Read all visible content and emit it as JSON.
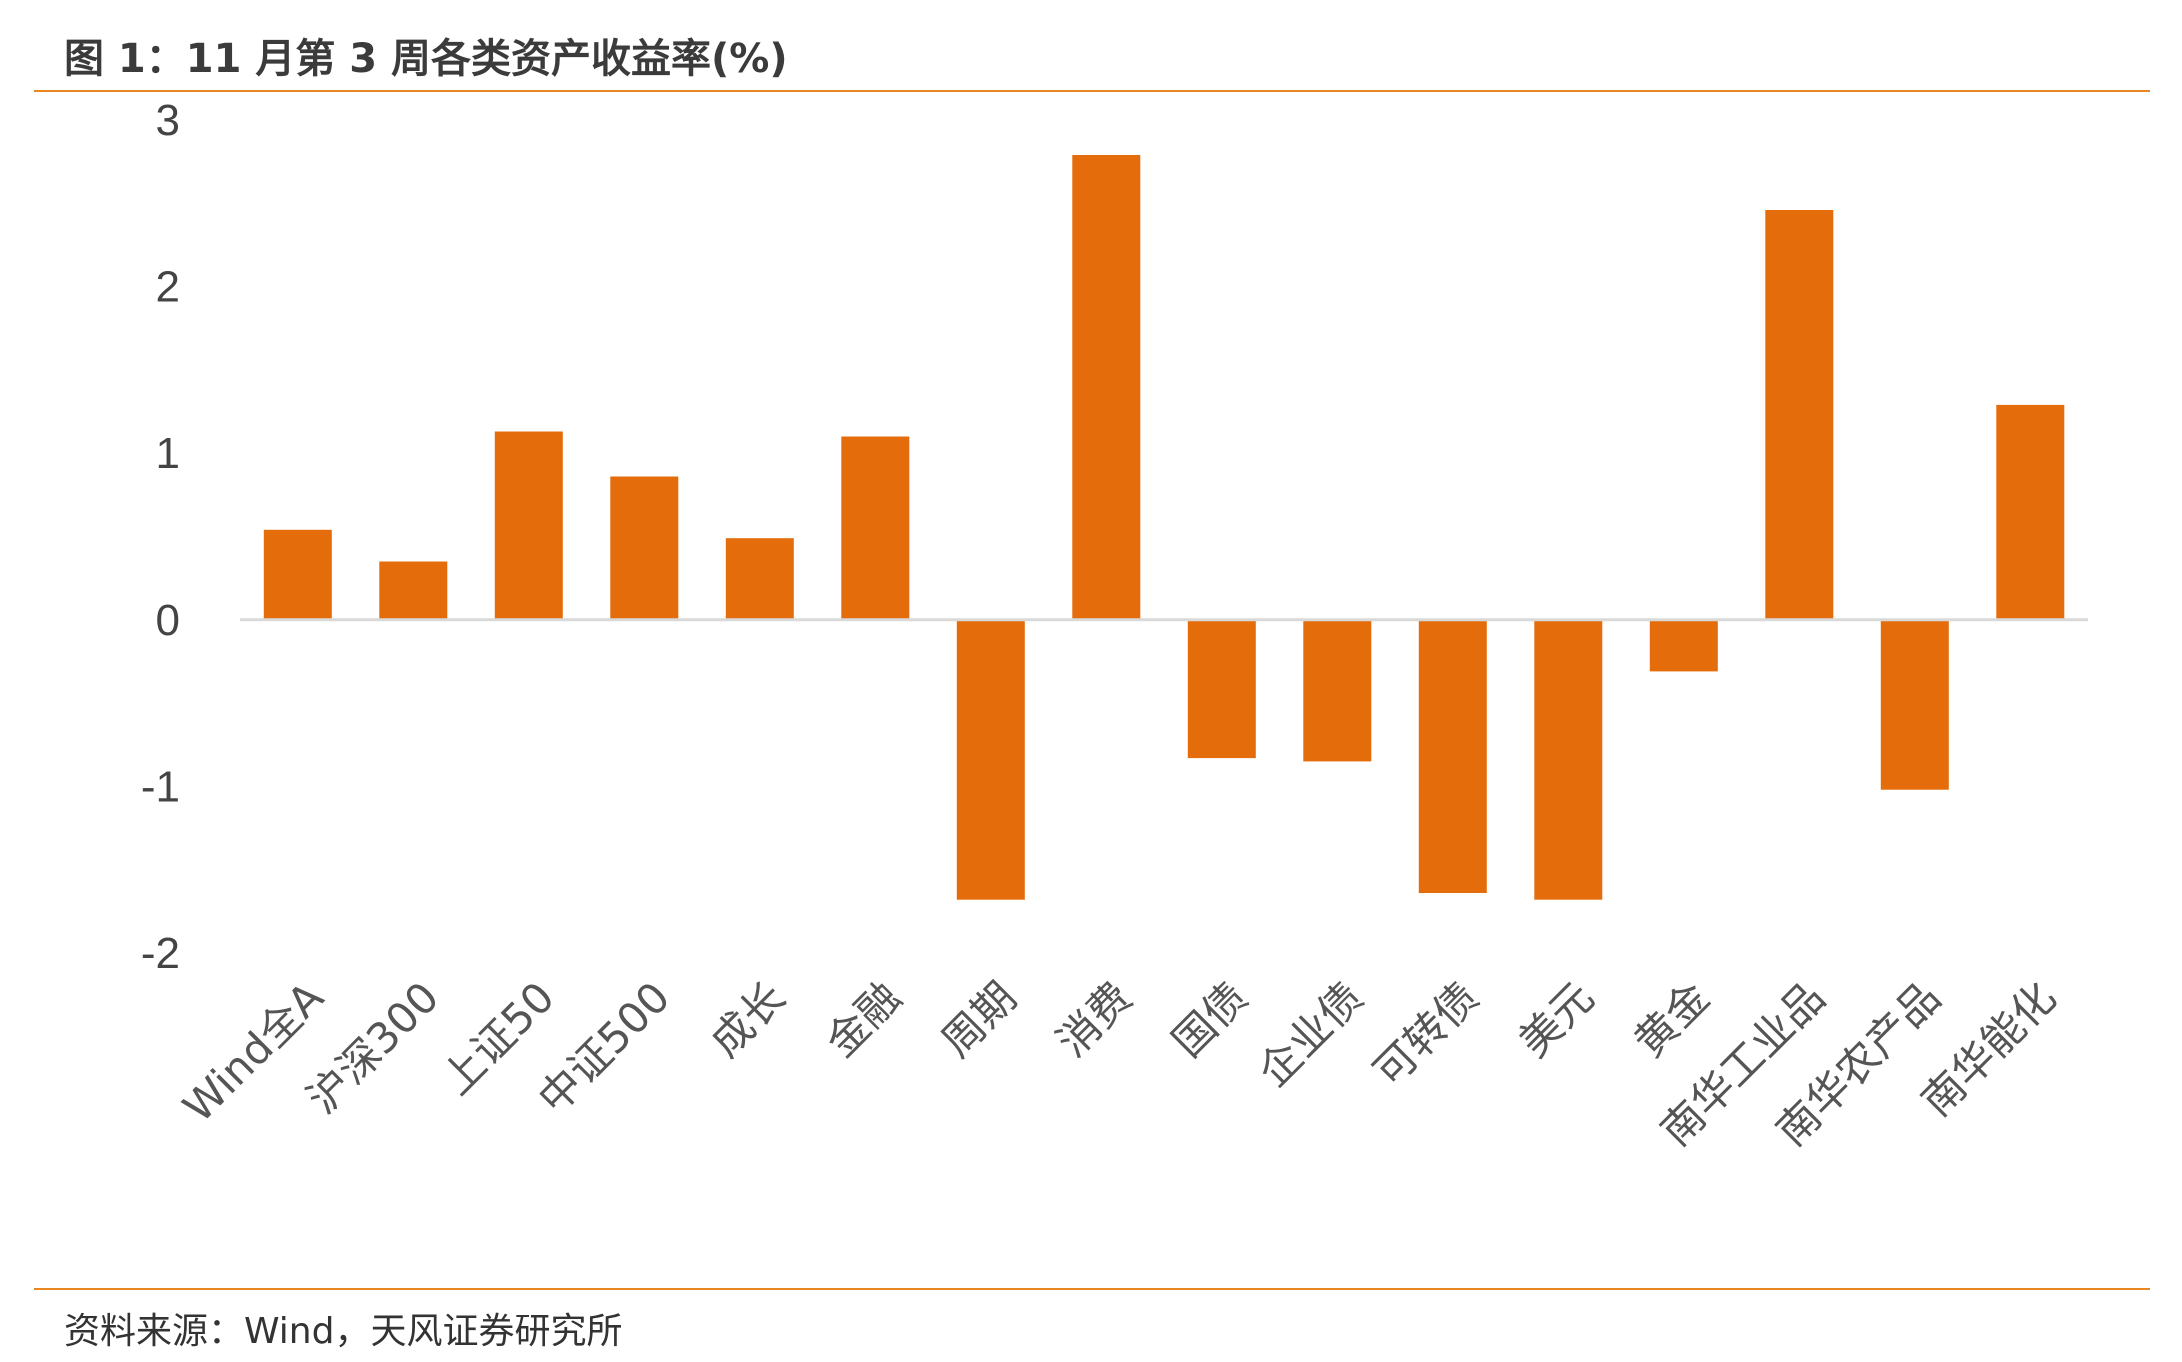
{
  "title": "图 1：11 月第 3 周各类资产收益率(%)",
  "source": "资料来源：Wind，天风证券研究所",
  "colors": {
    "bar": "#E46C0A",
    "rule": "#E8861F",
    "axis": "#D9D9D9"
  },
  "chart_data": {
    "type": "bar",
    "title": "",
    "xlabel": "",
    "ylabel": "",
    "ylim": [
      -2,
      3
    ],
    "yticks": [
      3,
      2,
      1,
      0,
      -1,
      -2
    ],
    "yticks_labels": [
      "3",
      "2",
      "1",
      "0",
      "-1",
      "-2"
    ],
    "grid": false,
    "legend": "none",
    "categories": [
      "Wind全A",
      "沪深300",
      "上证50",
      "中证500",
      "成长",
      "金融",
      "周期",
      "消费",
      "国债",
      "企业债",
      "可转债",
      "美元",
      "黄金",
      "南华工业品",
      "南华农产品",
      "南华能化"
    ],
    "values": [
      0.54,
      0.35,
      1.13,
      0.86,
      0.49,
      1.1,
      -1.68,
      2.79,
      -0.83,
      -0.85,
      -1.64,
      -1.68,
      -0.31,
      2.46,
      -1.02,
      1.29
    ]
  }
}
